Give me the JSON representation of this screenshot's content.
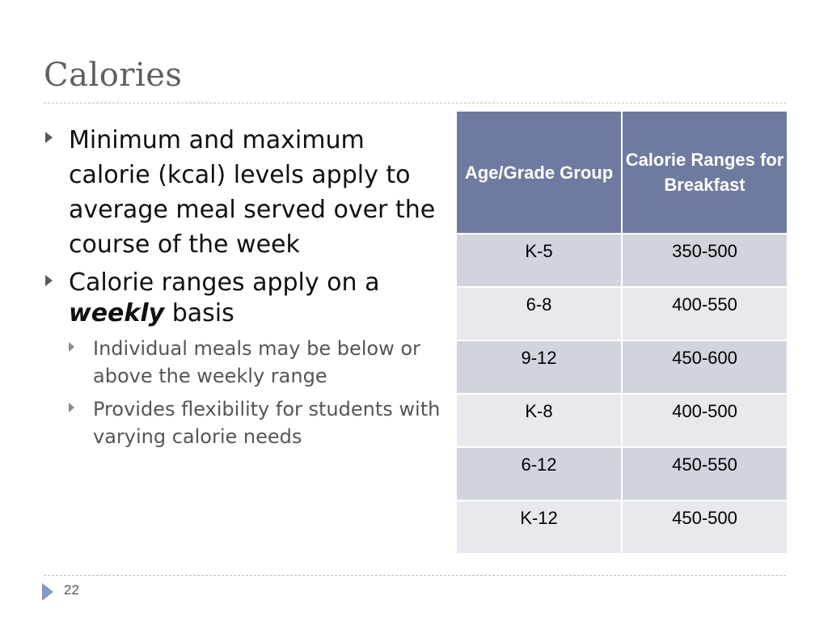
{
  "slide": {
    "title": "Calories",
    "page_number": "22"
  },
  "bullets": [
    {
      "level": 1,
      "text": "Minimum and maximum calorie (kcal) levels apply to average meal served over the course of the week"
    },
    {
      "level": 1,
      "text_before": "Calorie ranges apply on a ",
      "emphasis": "weekly",
      "text_after": " basis"
    },
    {
      "level": 2,
      "text": "Individual meals may be below or above the weekly range"
    },
    {
      "level": 2,
      "text": "Provides flexibility for students with varying calorie needs"
    }
  ],
  "table": {
    "headers": [
      "Age/Grade Group",
      "Calorie Ranges for Breakfast"
    ],
    "rows": [
      [
        "K-5",
        "350-500"
      ],
      [
        "6-8",
        "400-550"
      ],
      [
        "9-12",
        "450-600"
      ],
      [
        "K-8",
        "400-500"
      ],
      [
        "6-12",
        "450-550"
      ],
      [
        "K-12",
        "450-500"
      ]
    ],
    "colors": {
      "header_bg": "#6e7a9f",
      "row_odd_bg": "#d2d4dd",
      "row_even_bg": "#e8e9ee"
    }
  },
  "icons": {
    "bullet": "triangle-right-icon",
    "footer": "triangle-right-icon"
  }
}
